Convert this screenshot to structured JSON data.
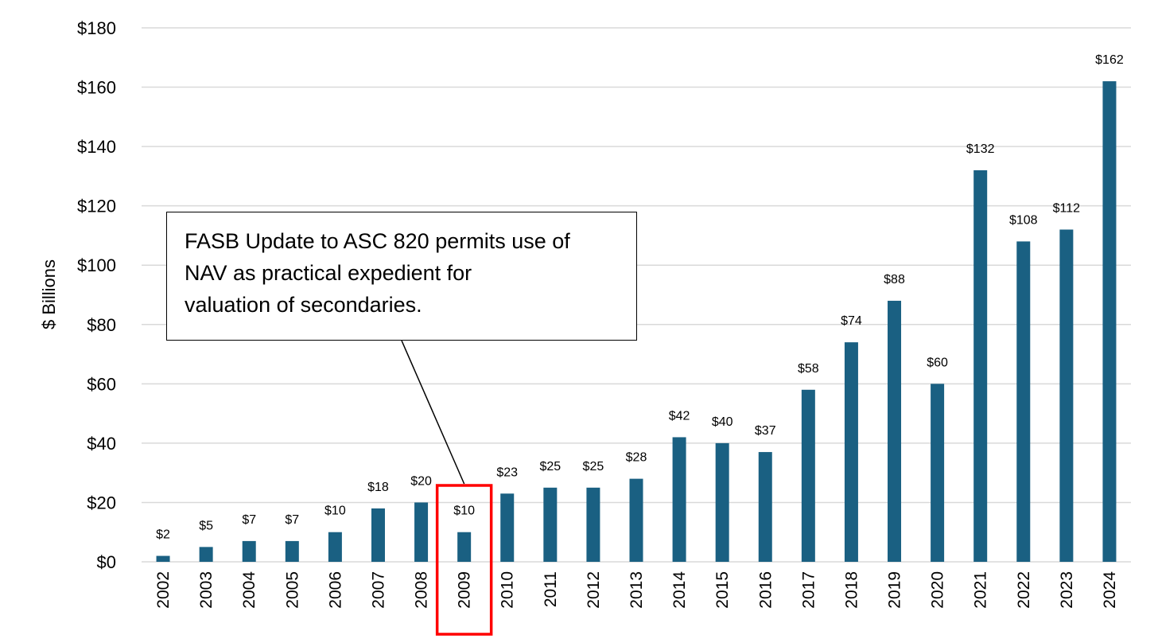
{
  "chart_data": {
    "type": "bar",
    "title": "",
    "xlabel": "",
    "ylabel": "$ Billions",
    "ylim": [
      0,
      180
    ],
    "yticks": [
      {
        "value": 0,
        "label": "$0"
      },
      {
        "value": 20,
        "label": "$20"
      },
      {
        "value": 40,
        "label": "$40"
      },
      {
        "value": 60,
        "label": "$60"
      },
      {
        "value": 80,
        "label": "$80"
      },
      {
        "value": 100,
        "label": "$100"
      },
      {
        "value": 120,
        "label": "$120"
      },
      {
        "value": 140,
        "label": "$140"
      },
      {
        "value": 160,
        "label": "$160"
      },
      {
        "value": 180,
        "label": "$180"
      }
    ],
    "grid": true,
    "bar_color": "#1a6082",
    "highlight_color": "#ff0000",
    "highlight_category": "2009",
    "categories": [
      "2002",
      "2003",
      "2004",
      "2005",
      "2006",
      "2007",
      "2008",
      "2009",
      "2010",
      "2011",
      "2012",
      "2013",
      "2014",
      "2015",
      "2016",
      "2017",
      "2018",
      "2019",
      "2020",
      "2021",
      "2022",
      "2023",
      "2024"
    ],
    "values": [
      2,
      5,
      7,
      7,
      10,
      18,
      20,
      10,
      23,
      25,
      25,
      28,
      42,
      40,
      37,
      58,
      74,
      88,
      60,
      132,
      108,
      112,
      162
    ],
    "data_labels": [
      "$2",
      "$5",
      "$7",
      "$7",
      "$10",
      "$18",
      "$20",
      "$10",
      "$23",
      "$25",
      "$25",
      "$28",
      "$42",
      "$40",
      "$37",
      "$58",
      "$74",
      "$88",
      "$60",
      "$132",
      "$108",
      "$112",
      "$162"
    ],
    "annotation": {
      "lines": [
        "FASB Update to ASC 820 permits use of",
        "NAV as practical expedient for",
        "valuation of secondaries."
      ],
      "points_to": "2009"
    }
  }
}
